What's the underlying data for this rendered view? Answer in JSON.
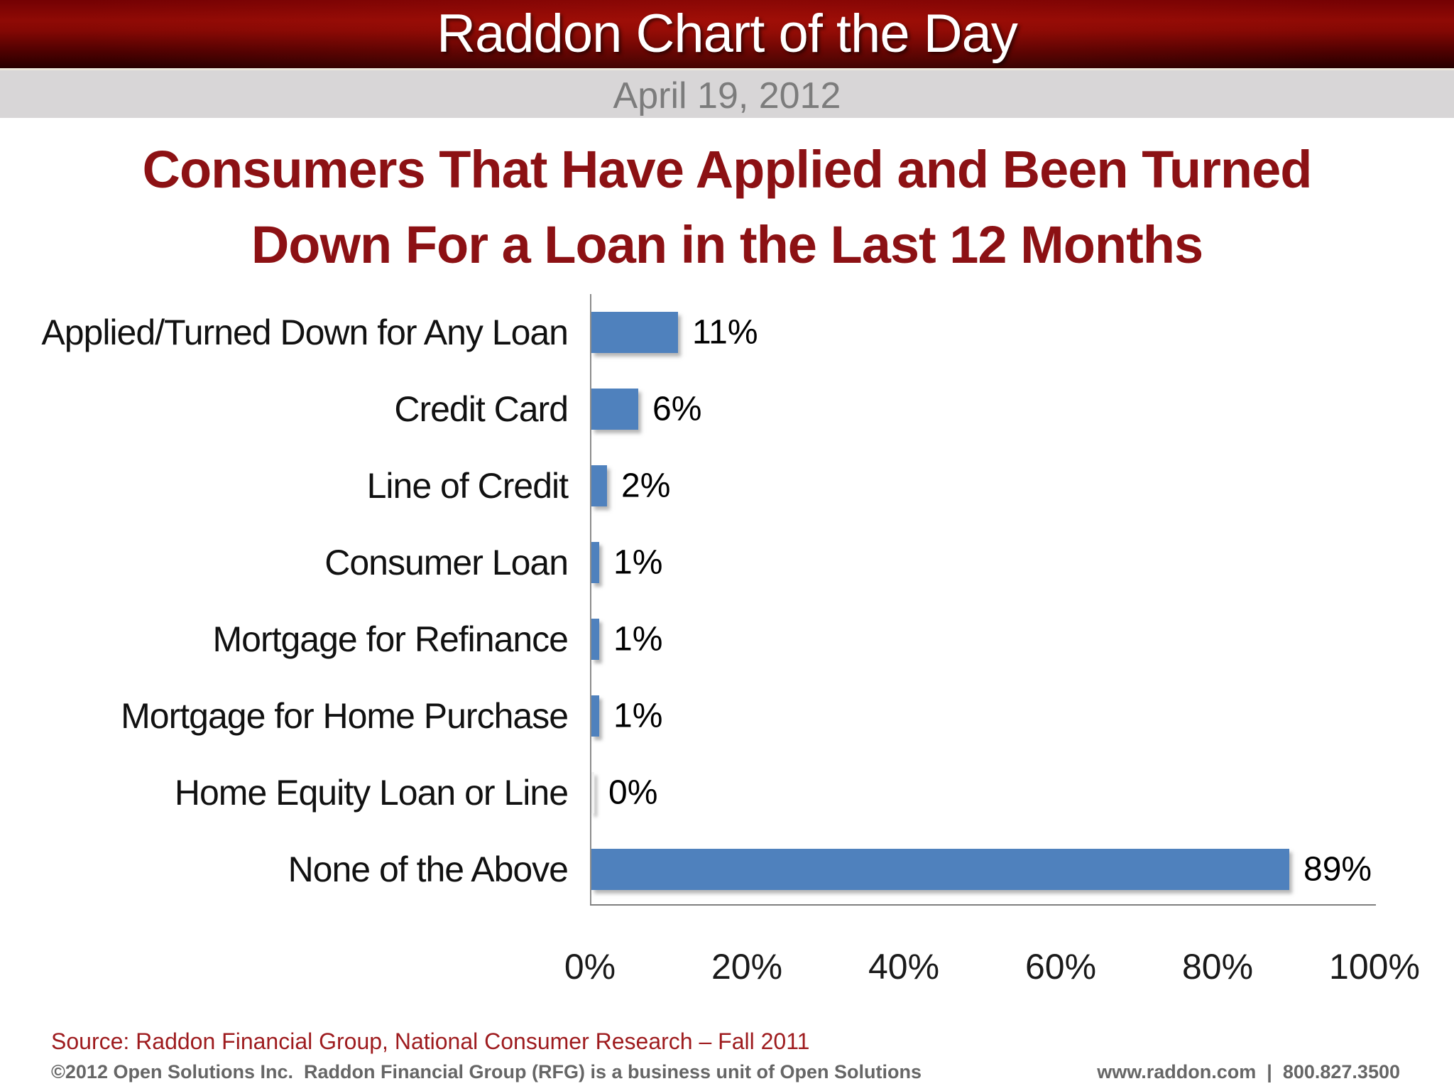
{
  "header": {
    "title": "Raddon Chart of the Day",
    "date": "April 19, 2012"
  },
  "title": {
    "line1": "Consumers That Have Applied and Been Turned",
    "line2": "Down For a Loan in the Last 12 Months"
  },
  "chart_data": {
    "type": "bar",
    "orientation": "horizontal",
    "title": "Consumers That Have Applied and Been Turned Down For a Loan in the Last 12 Months",
    "categories": [
      "Applied/Turned Down for Any Loan",
      "Credit Card",
      "Line of Credit",
      "Consumer Loan",
      "Mortgage for Refinance",
      "Mortgage for Home Purchase",
      "Home Equity Loan or Line",
      "None of the Above"
    ],
    "values": [
      11,
      6,
      2,
      1,
      1,
      1,
      0,
      89
    ],
    "value_labels": [
      "11%",
      "6%",
      "2%",
      "1%",
      "1%",
      "1%",
      "0%",
      "89%"
    ],
    "x_ticks": [
      "0%",
      "20%",
      "40%",
      "60%",
      "80%",
      "100%"
    ],
    "x_tick_values": [
      0,
      20,
      40,
      60,
      80,
      100
    ],
    "xlim": [
      0,
      100
    ],
    "grid": false,
    "legend": "none",
    "bar_color": "#4f81bd",
    "label_position": "outside-end"
  },
  "footer": {
    "source": "Source: Raddon Financial Group, National Consumer Research – Fall 2011",
    "copyright": "©2012 Open Solutions Inc.  Raddon Financial Group (RFG) is a business unit of Open Solutions",
    "website": "www.raddon.com",
    "separator": "|",
    "phone": "800.827.3500"
  }
}
